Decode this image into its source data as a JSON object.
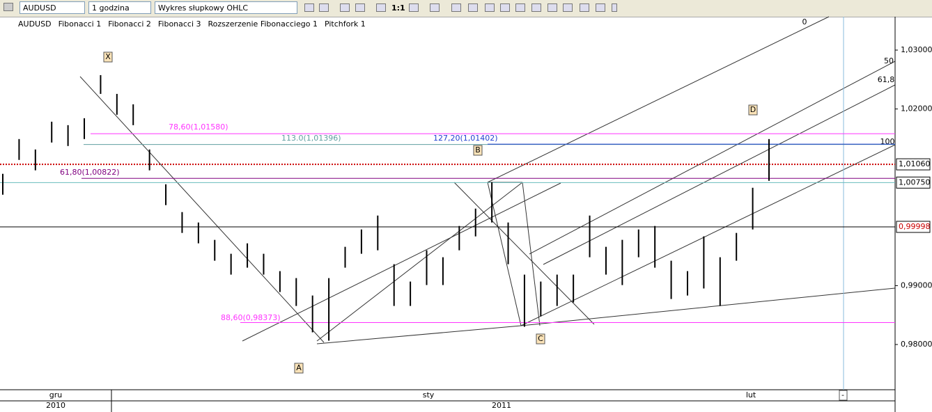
{
  "toolbar": {
    "symbol": "AUDUSD",
    "timeframe": "1 godzina",
    "chart_type": "Wykres słupkowy OHLC",
    "zoom": "1:1"
  },
  "indicators": [
    "AUDUSD",
    "Fibonacci 1",
    "Fibonacci 2",
    "Fibonacci 3",
    "Rozszerzenie Fibonacciego 1",
    "Pitchfork 1"
  ],
  "chart": {
    "ylim": [
      0.97232,
      1.03567
    ],
    "yticks": [
      {
        "value": 1.03,
        "label": "1,03000"
      },
      {
        "value": 1.02,
        "label": "1,02000"
      },
      {
        "value": 0.99,
        "label": "0,99000"
      },
      {
        "value": 0.98,
        "label": "0,98000"
      }
    ],
    "bars": {
      "high": [
        1.00899,
        1.01489,
        1.01312,
        1.01784,
        1.01725,
        1.01843,
        1.02575,
        1.02256,
        1.02079,
        1.01312,
        1.00721,
        1.00249,
        1.00072,
        0.99777,
        0.99541,
        0.99718,
        0.99541,
        0.99246,
        0.99128,
        0.98832,
        0.99128,
        0.99659,
        0.99954,
        1.0019,
        0.99364,
        0.99069,
        0.996,
        0.99482,
        1.00013,
        1.00308,
        1.00757,
        1.00072,
        0.99187,
        0.99069,
        0.99187,
        0.99187,
        1.0019,
        0.99659,
        0.99777,
        0.99954,
        1.00013,
        0.99423,
        0.99246,
        0.99836,
        0.99482,
        0.99895,
        1.00662,
        1.01489
      ],
      "low": [
        1.00544,
        1.01135,
        1.00958,
        1.0143,
        1.01371,
        1.01489,
        1.02256,
        1.01902,
        1.01725,
        1.00958,
        1.00367,
        0.99895,
        0.99718,
        0.99423,
        0.99187,
        0.99305,
        0.99187,
        0.98891,
        0.98655,
        0.98207,
        0.98065,
        0.99305,
        0.99541,
        0.996,
        0.98655,
        0.98655,
        0.9901,
        0.9901,
        0.996,
        0.99836,
        1.00072,
        0.99364,
        0.98301,
        0.98478,
        0.98655,
        0.98714,
        0.99482,
        0.99187,
        0.9901,
        0.99482,
        0.99305,
        0.98773,
        0.98832,
        0.98951,
        0.98655,
        0.99423,
        0.99954,
        1.0078
      ]
    },
    "fib_levels": [
      {
        "label": "78,60(1,01580)",
        "value": 1.0158,
        "color": "#ff33ff"
      },
      {
        "label": "113.0(1,01396)",
        "value": 1.01396,
        "color": "#5f9ea0"
      },
      {
        "label": "127,20(1,01402)",
        "value": 1.01402,
        "color": "#1f3fd0"
      },
      {
        "label": "61,80(1,00822)",
        "value": 1.00822,
        "color": "#800080"
      },
      {
        "label": "88,60(0,98373)",
        "value": 0.98373,
        "color": "#ff33ff"
      }
    ],
    "price_lines": [
      {
        "value": 1.0106,
        "label": "1,01060",
        "color": "#cc0000"
      },
      {
        "value": 1.0075,
        "label": "1,00750",
        "color": "#66bbbb"
      },
      {
        "value": 0.99998,
        "label": "0,99998",
        "color": "#000000"
      }
    ],
    "wave_labels": [
      "X",
      "A",
      "B",
      "C",
      "D"
    ],
    "pitchfork_labels": [
      "0",
      "50",
      "61,8",
      "100"
    ],
    "time_labels": [
      "gru",
      "sty",
      "lut"
    ],
    "year_labels": [
      "2010",
      "2011"
    ],
    "cursor_label": "-"
  }
}
